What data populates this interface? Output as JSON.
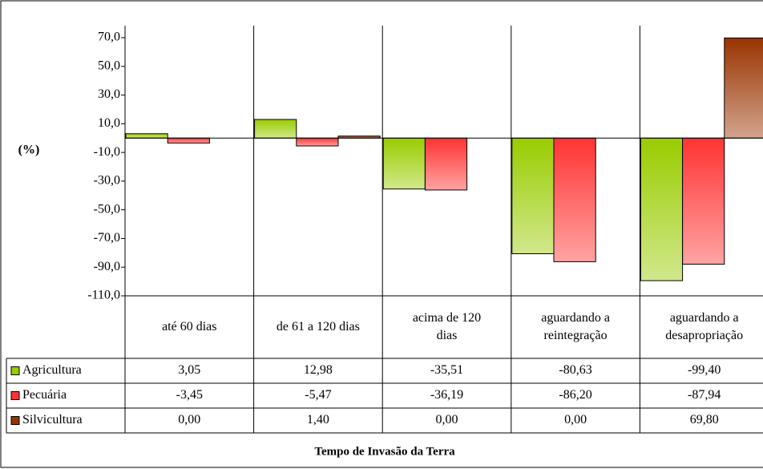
{
  "chart_data": {
    "type": "bar",
    "x_label": "Tempo de Invasão da Terra",
    "y_label": "(%)",
    "categories": [
      "até 60 dias",
      "de 61 a 120 dias",
      "acima de 120\ndias",
      "aguardando a\nreintegração",
      "aguardando a\ndesapropriação"
    ],
    "series": [
      {
        "name": "Agricultura",
        "color": "#99cc00",
        "values": [
          3.05,
          12.98,
          -35.51,
          -80.63,
          -99.4
        ],
        "value_labels": [
          "3,05",
          "12,98",
          "-35,51",
          "-80,63",
          "-99,40"
        ]
      },
      {
        "name": "Pecuária",
        "color": "#ff3333",
        "values": [
          -3.45,
          -5.47,
          -36.19,
          -86.2,
          -87.94
        ],
        "value_labels": [
          "-3,45",
          "-5,47",
          "-36,19",
          "-86,20",
          "-87,94"
        ]
      },
      {
        "name": "Silvicultura",
        "color": "#993300",
        "values": [
          0,
          1.4,
          0,
          0,
          69.8
        ],
        "value_labels": [
          "0,00",
          "1,40",
          "0,00",
          "0,00",
          "69,80"
        ]
      }
    ],
    "ylim": [
      -110,
      70
    ],
    "yticks": [
      {
        "value": 70,
        "label": "70,0"
      },
      {
        "value": 50,
        "label": "50,0"
      },
      {
        "value": 30,
        "label": "30,0"
      },
      {
        "value": 10,
        "label": "10,0"
      },
      {
        "value": -10,
        "label": "-10,0"
      },
      {
        "value": -30,
        "label": "-30,0"
      },
      {
        "value": -50,
        "label": "-50,0"
      },
      {
        "value": -70,
        "label": "-70,0"
      },
      {
        "value": -90,
        "label": "-90,0"
      },
      {
        "value": -110,
        "label": "-110,0"
      }
    ],
    "grid": false
  }
}
